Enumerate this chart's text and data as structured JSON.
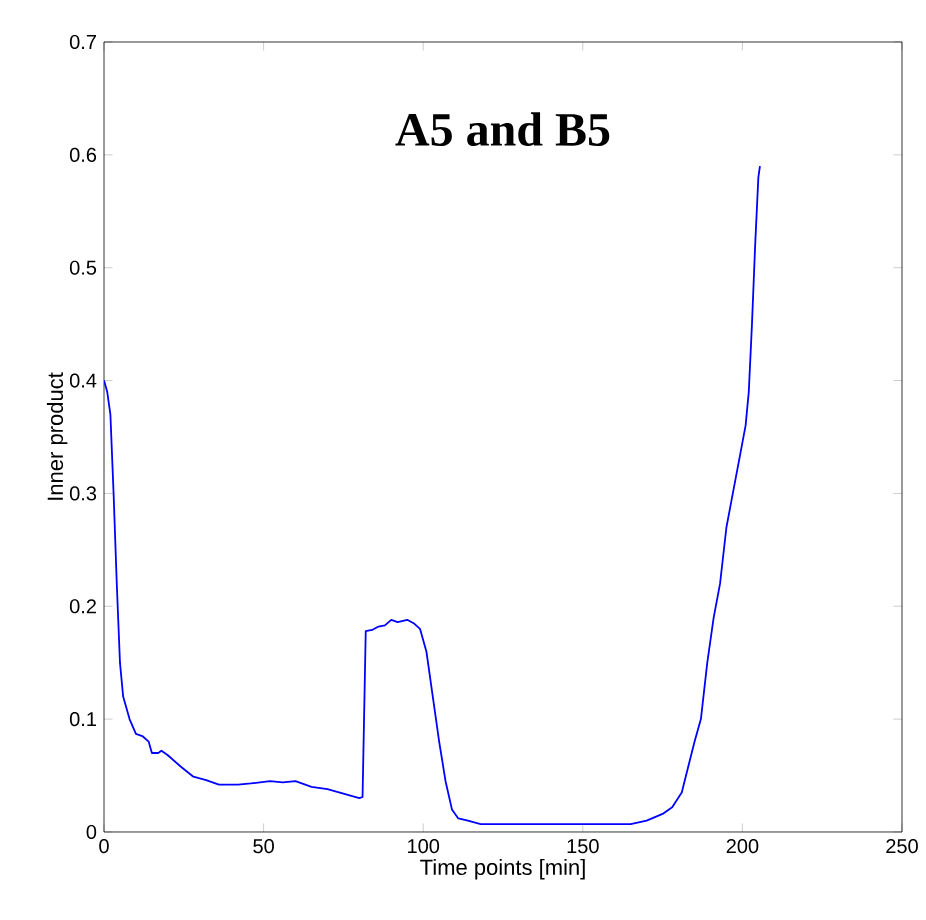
{
  "chart_data": {
    "type": "line",
    "xlabel": "Time points [min]",
    "ylabel": "Inner product",
    "annotations": [
      "**A5 and B5**"
    ],
    "xlim": [
      0,
      250
    ],
    "ylim": [
      0,
      0.7
    ],
    "xticks": [
      0,
      50,
      100,
      150,
      200,
      250
    ],
    "yticks": [
      0,
      0.1,
      0.2,
      0.3,
      0.4,
      0.5,
      0.6,
      0.7
    ],
    "grid": false,
    "marker": "none",
    "line_style": "solid",
    "series": [
      {
        "color": "#0000ff",
        "x": [
          0,
          1,
          2,
          3,
          4,
          5,
          6,
          8,
          10,
          12,
          14,
          15,
          17,
          18,
          20,
          24,
          28,
          32,
          36,
          42,
          46,
          52,
          56,
          60,
          65,
          70,
          75,
          80,
          81,
          82,
          84,
          86,
          88,
          90,
          92,
          95,
          97,
          99,
          101,
          103,
          105,
          107,
          109,
          111,
          114,
          118,
          140,
          165,
          170,
          175,
          178,
          181,
          185,
          187,
          189,
          191,
          193,
          195,
          197,
          199,
          201,
          202,
          203,
          204,
          205,
          205.5
        ],
        "values": [
          0.4,
          0.39,
          0.37,
          0.3,
          0.22,
          0.15,
          0.12,
          0.1,
          0.087,
          0.085,
          0.08,
          0.07,
          0.07,
          0.072,
          0.068,
          0.058,
          0.049,
          0.046,
          0.042,
          0.042,
          0.043,
          0.045,
          0.044,
          0.045,
          0.04,
          0.038,
          0.034,
          0.03,
          0.031,
          0.178,
          0.179,
          0.182,
          0.183,
          0.188,
          0.186,
          0.188,
          0.185,
          0.18,
          0.16,
          0.12,
          0.08,
          0.045,
          0.02,
          0.012,
          0.01,
          0.007,
          0.007,
          0.007,
          0.01,
          0.016,
          0.022,
          0.035,
          0.08,
          0.1,
          0.15,
          0.19,
          0.22,
          0.27,
          0.3,
          0.33,
          0.36,
          0.39,
          0.45,
          0.52,
          0.58,
          0.59
        ]
      }
    ]
  }
}
